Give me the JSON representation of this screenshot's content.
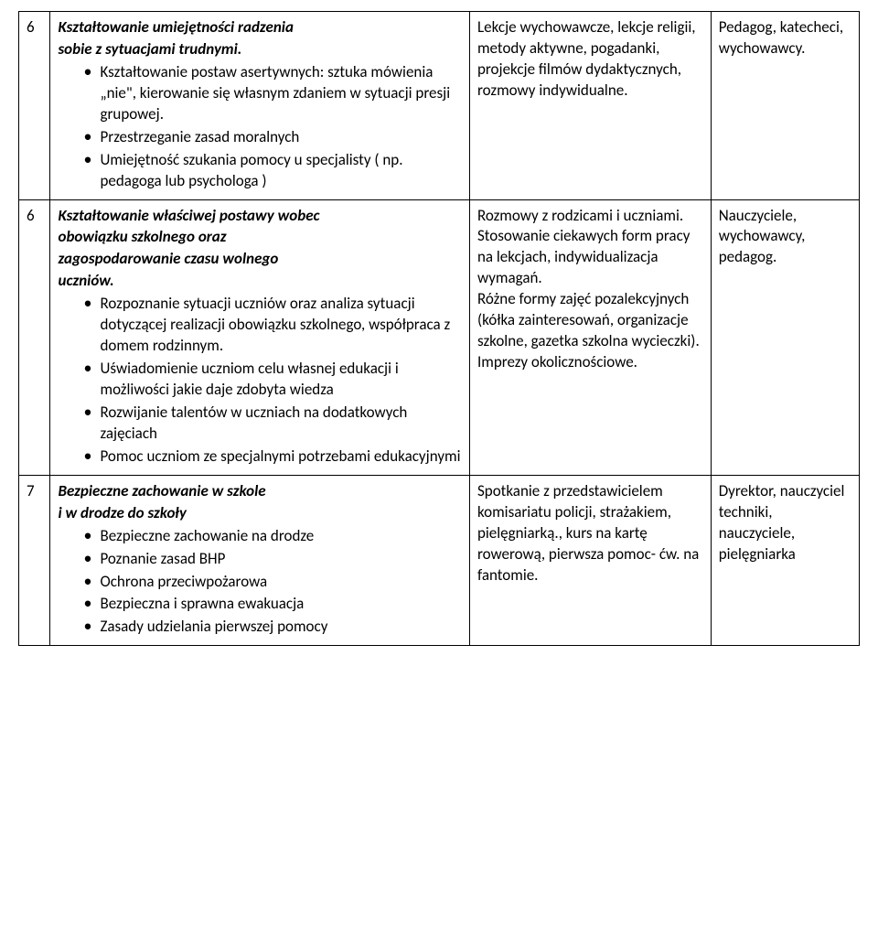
{
  "rows": [
    {
      "num": "6",
      "col1": {
        "heading": [
          "Kształtowanie umiejętności radzenia",
          "sobie z sytuacjami trudnymi."
        ],
        "bullets": [
          "Kształtowanie postaw asertywnych: sztuka mówienia „nie\", kierowanie się własnym zdaniem w sytuacji presji grupowej.",
          "Przestrzeganie zasad moralnych",
          "Umiejętność szukania pomocy u specjalisty ( np. pedagoga lub psychologa )"
        ]
      },
      "col2": "Lekcje wychowawcze, lekcje religii, metody aktywne, pogadanki, projekcje filmów dydaktycznych, rozmowy indywidualne.",
      "col3": "Pedagog, katecheci, wychowawcy."
    },
    {
      "num": "6",
      "col1": {
        "heading": [
          "Kształtowanie właściwej postawy wobec",
          "obowiązku szkolnego oraz",
          "zagospodarowanie czasu wolnego",
          "uczniów."
        ],
        "bullets": [
          "Rozpoznanie sytuacji uczniów oraz analiza sytuacji dotyczącej realizacji obowiązku szkolnego, współpraca z domem rodzinnym.",
          "Uświadomienie uczniom celu własnej edukacji i możliwości jakie daje zdobyta wiedza",
          "Rozwijanie talentów w uczniach na dodatkowych zajęciach",
          "Pomoc uczniom ze specjalnymi potrzebami edukacyjnymi"
        ]
      },
      "col2": "Rozmowy z rodzicami i uczniami.\nStosowanie ciekawych form pracy na lekcjach, indywidualizacja wymagań.\nRóżne formy zajęć pozalekcyjnych (kółka zainteresowań, organizacje szkolne, gazetka szkolna wycieczki).\nImprezy okolicznościowe.",
      "col3": "Nauczyciele, wychowawcy, pedagog."
    },
    {
      "num": "7",
      "col1": {
        "heading": [
          "Bezpieczne zachowanie w szkole",
          "i w drodze do szkoły"
        ],
        "bullets": [
          "Bezpieczne zachowanie na drodze",
          "Poznanie zasad BHP",
          "Ochrona przeciwpożarowa",
          "Bezpieczna i sprawna ewakuacja",
          "Zasady udzielania pierwszej pomocy"
        ]
      },
      "col2": "Spotkanie z przedstawicielem komisariatu policji, strażakiem, pielęgniarką., kurs na kartę rowerową, pierwsza pomoc- ćw. na fantomie.",
      "col3": "Dyrektor, nauczyciel techniki, nauczyciele, pielęgniarka"
    }
  ]
}
